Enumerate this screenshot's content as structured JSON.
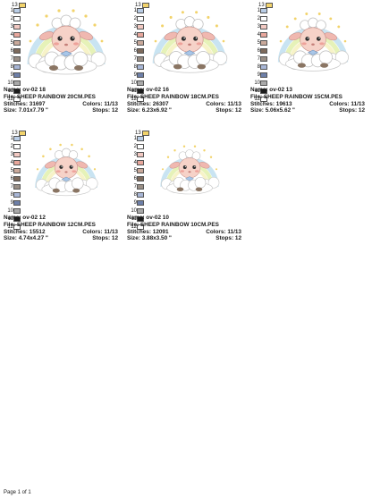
{
  "designs": [
    {
      "name": "Name: ov-02 18",
      "file": "File: SHEEP RAINBOW 20CM.PES",
      "stitches": "Stitches: 31697",
      "colors": "Colors: 11/13",
      "size": "Size: 7.01x7.79 \"",
      "stops": "Stops: 12"
    },
    {
      "name": "Name: ov-02 16",
      "file": "File: SHEEP RAINBOW 18CM.PES",
      "stitches": "Stitches: 26307",
      "colors": "Colors: 11/13",
      "size": "Size: 6.23x6.92 \"",
      "stops": "Stops: 12"
    },
    {
      "name": "Name: ov-02 13",
      "file": "File: SHEEP RAINBOW 15CM.PES",
      "stitches": "Stitches: 19613",
      "colors": "Colors: 11/13",
      "size": "Size: 5.06x5.62 \"",
      "stops": "Stops: 12"
    },
    {
      "name": "Name: ov-02 12",
      "file": "File: SHEEP RAINBOW 12CM.PES",
      "stitches": "Stitches: 15512",
      "colors": "Colors: 11/13",
      "size": "Size: 4.74x4.27 \"",
      "stops": "Stops: 12"
    },
    {
      "name": "Name: ov-02 10",
      "file": "File: SHEEP RAINBOW 10CM.PES",
      "stitches": "Stitches: 12091",
      "colors": "Colors: 11/13",
      "size": "Size: 3.88x3.50 \"",
      "stops": "Stops: 12"
    }
  ],
  "swatch_labels": [
    "1",
    "2",
    "3",
    "4",
    "5",
    "6",
    "7",
    "8",
    "9",
    "10",
    "11",
    "12"
  ],
  "swatch_top_label": "13",
  "swatch_colors": [
    "#b9cde6",
    "#ffffff",
    "#f2c9c2",
    "#e8a79c",
    "#c9a99b",
    "#7d6a5c",
    "#9a8f86",
    "#a8b6d6",
    "#6d7fa8",
    "#a9a9a9",
    "#1c1c1c",
    "#ffffff"
  ],
  "swatch_top_color": "#f2d36b",
  "footer": "Page 1 of 1"
}
